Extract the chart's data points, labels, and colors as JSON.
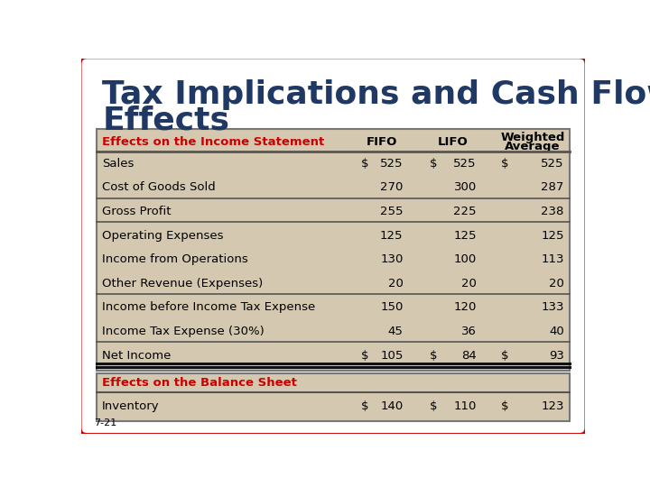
{
  "title_line1": "Tax Implications and Cash Flow",
  "title_line2": "Effects",
  "title_color": "#1F3864",
  "outer_bg": "#FFFFFF",
  "border_color": "#CC0000",
  "table_bg": "#D4C9B0",
  "section_label_color": "#CC0000",
  "text_color": "#000000",
  "page_label": "7-21",
  "rows": [
    {
      "label": "Sales",
      "fifo_s": "$",
      "fifo_v": "525",
      "lifo_s": "$",
      "lifo_v": "525",
      "wa_s": "$",
      "wa_v": "525",
      "bold": false
    },
    {
      "label": "Cost of Goods Sold",
      "fifo_s": "",
      "fifo_v": "270",
      "lifo_s": "",
      "lifo_v": "300",
      "wa_s": "",
      "wa_v": "287",
      "bold": false
    },
    {
      "label": "Gross Profit",
      "fifo_s": "",
      "fifo_v": "255",
      "lifo_s": "",
      "lifo_v": "225",
      "wa_s": "",
      "wa_v": "238",
      "bold": false
    },
    {
      "label": "Operating Expenses",
      "fifo_s": "",
      "fifo_v": "125",
      "lifo_s": "",
      "lifo_v": "125",
      "wa_s": "",
      "wa_v": "125",
      "bold": false
    },
    {
      "label": "Income from Operations",
      "fifo_s": "",
      "fifo_v": "130",
      "lifo_s": "",
      "lifo_v": "100",
      "wa_s": "",
      "wa_v": "113",
      "bold": false
    },
    {
      "label": "Other Revenue (Expenses)",
      "fifo_s": "",
      "fifo_v": "20",
      "lifo_s": "",
      "lifo_v": "20",
      "wa_s": "",
      "wa_v": "20",
      "bold": false
    },
    {
      "label": "Income before Income Tax Expense",
      "fifo_s": "",
      "fifo_v": "150",
      "lifo_s": "",
      "lifo_v": "120",
      "wa_s": "",
      "wa_v": "133",
      "bold": false
    },
    {
      "label": "Income Tax Expense (30%)",
      "fifo_s": "",
      "fifo_v": "45",
      "lifo_s": "",
      "lifo_v": "36",
      "wa_s": "",
      "wa_v": "40",
      "bold": false
    },
    {
      "label": "Net Income",
      "fifo_s": "$",
      "fifo_v": "105",
      "lifo_s": "$",
      "lifo_v": "84",
      "wa_s": "$",
      "wa_v": "93",
      "bold": false
    }
  ],
  "balance_sheet_label": "Effects on the Balance Sheet",
  "bs_rows": [
    {
      "label": "Inventory",
      "fifo_s": "$",
      "fifo_v": "140",
      "lifo_s": "$",
      "lifo_v": "110",
      "wa_s": "$",
      "wa_v": "123"
    }
  ]
}
